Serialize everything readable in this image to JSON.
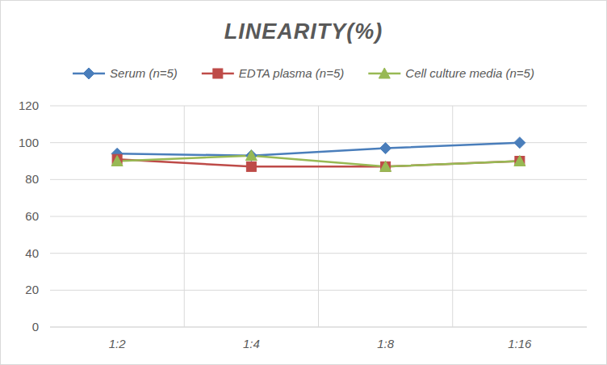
{
  "chart_data": {
    "type": "line",
    "title": "LINEARITY(%)",
    "categories": [
      "1:2",
      "1:4",
      "1:8",
      "1:16"
    ],
    "series": [
      {
        "name": "Serum (n=5)",
        "color": "#4a7ebb",
        "marker": "diamond",
        "values": [
          94,
          93,
          97,
          100
        ]
      },
      {
        "name": "EDTA plasma (n=5)",
        "color": "#be4b48",
        "marker": "square",
        "values": [
          91,
          87,
          87,
          90
        ]
      },
      {
        "name": "Cell culture media (n=5)",
        "color": "#98b954",
        "marker": "triangle",
        "values": [
          90,
          93,
          87,
          90
        ]
      }
    ],
    "ylim": [
      0,
      120
    ],
    "yticks": [
      0,
      20,
      40,
      60,
      80,
      100,
      120
    ],
    "grid": true,
    "legend": "top"
  }
}
